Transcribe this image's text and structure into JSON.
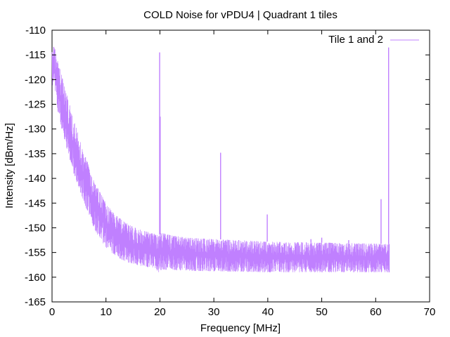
{
  "chart_data": {
    "type": "line",
    "title": "COLD Noise for vPDU4 | Quadrant 1 tiles",
    "xlabel": "Frequency [MHz]",
    "ylabel": "Intensity [dBm/Hz]",
    "xlim": [
      0,
      70
    ],
    "ylim": [
      -165,
      -110
    ],
    "xticks": [
      0,
      10,
      20,
      30,
      40,
      50,
      60,
      70
    ],
    "yticks": [
      -165,
      -160,
      -155,
      -150,
      -145,
      -140,
      -135,
      -130,
      -125,
      -120,
      -115,
      -110
    ],
    "grid": false,
    "legend_position": "top-right",
    "series": [
      {
        "name": "Tile 1 and 2",
        "color": "#c080ff",
        "x_max": 62.5,
        "upper_envelope": [
          [
            0.0,
            -113
          ],
          [
            0.5,
            -113.5
          ],
          [
            1,
            -116
          ],
          [
            2,
            -120
          ],
          [
            3,
            -124
          ],
          [
            4,
            -128
          ],
          [
            5,
            -131.5
          ],
          [
            6,
            -135
          ],
          [
            7,
            -138
          ],
          [
            8,
            -141
          ],
          [
            9,
            -143
          ],
          [
            10,
            -145
          ],
          [
            11,
            -146.5
          ],
          [
            12,
            -147.5
          ],
          [
            13,
            -148.5
          ],
          [
            14,
            -149.2
          ],
          [
            15,
            -149.8
          ],
          [
            16,
            -150.2
          ],
          [
            17,
            -150.6
          ],
          [
            18,
            -150.9
          ],
          [
            19,
            -151.2
          ],
          [
            19.8,
            -151.5
          ],
          [
            20.3,
            -151
          ],
          [
            22,
            -151.5
          ],
          [
            25,
            -152
          ],
          [
            30,
            -152.3
          ],
          [
            35,
            -152.5
          ],
          [
            40,
            -152.8
          ],
          [
            45,
            -152.9
          ],
          [
            50,
            -153.0
          ],
          [
            55,
            -153.1
          ],
          [
            60,
            -153.2
          ],
          [
            62.5,
            -153.3
          ]
        ],
        "lower_envelope": [
          [
            0.0,
            -121
          ],
          [
            0.5,
            -122
          ],
          [
            1,
            -126
          ],
          [
            2,
            -131
          ],
          [
            3,
            -135
          ],
          [
            4,
            -139
          ],
          [
            5,
            -142
          ],
          [
            6,
            -145
          ],
          [
            7,
            -148
          ],
          [
            8,
            -150.5
          ],
          [
            9,
            -152.5
          ],
          [
            10,
            -154
          ],
          [
            11,
            -155
          ],
          [
            12,
            -155.8
          ],
          [
            13,
            -156.5
          ],
          [
            14,
            -157
          ],
          [
            15,
            -157.3
          ],
          [
            16,
            -157.6
          ],
          [
            17,
            -157.8
          ],
          [
            18,
            -158
          ],
          [
            19,
            -158.2
          ],
          [
            19.8,
            -159
          ],
          [
            20.3,
            -158.5
          ],
          [
            22,
            -158.5
          ],
          [
            25,
            -158.7
          ],
          [
            30,
            -158.8
          ],
          [
            35,
            -158.9
          ],
          [
            40,
            -159
          ],
          [
            45,
            -159
          ],
          [
            50,
            -159
          ],
          [
            55,
            -159
          ],
          [
            60,
            -159
          ],
          [
            62.5,
            -159
          ]
        ],
        "spikes": [
          {
            "x": 19.95,
            "y": -114.5
          },
          {
            "x": 20.05,
            "y": -127.5
          },
          {
            "x": 31.25,
            "y": -134.8
          },
          {
            "x": 39.9,
            "y": -147.3
          },
          {
            "x": 48.0,
            "y": -152.3
          },
          {
            "x": 50.0,
            "y": -152.0
          },
          {
            "x": 55.0,
            "y": -152.5
          },
          {
            "x": 61.0,
            "y": -144.2
          },
          {
            "x": 62.4,
            "y": -113.5
          }
        ]
      }
    ]
  }
}
